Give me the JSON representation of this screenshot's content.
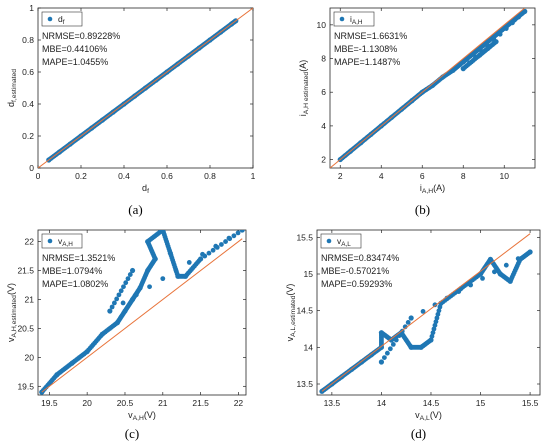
{
  "chart_data": [
    {
      "id": "a",
      "type": "scatter",
      "caption": "(a)",
      "legend": "d_f",
      "legend_main": "d",
      "legend_sub": "f",
      "stats": [
        "NRMSE=0.89228%",
        "MBE=0.44106%",
        "MAPE=1.0455%"
      ],
      "xlabel_main": "d",
      "xlabel_sub": "f",
      "ylabel_main": "d",
      "ylabel_sub": "f,estimated",
      "xlim": [
        0,
        1
      ],
      "ylim": [
        0,
        1
      ],
      "xticks": [
        0,
        0.2,
        0.4,
        0.6,
        0.8,
        1
      ],
      "yticks": [
        0,
        0.2,
        0.4,
        0.6,
        0.8,
        1
      ],
      "xticklabels": [
        "0",
        "0.2",
        "0.4",
        "0.6",
        "0.8",
        "1"
      ],
      "yticklabels": [
        "0",
        "0.2",
        "0.4",
        "0.6",
        "0.8",
        "1"
      ],
      "reference_line": [
        [
          0,
          0
        ],
        [
          1,
          1
        ]
      ],
      "points": [
        [
          0.05,
          0.05
        ],
        [
          0.1,
          0.1
        ],
        [
          0.15,
          0.15
        ],
        [
          0.2,
          0.2
        ],
        [
          0.25,
          0.25
        ],
        [
          0.3,
          0.3
        ],
        [
          0.35,
          0.35
        ],
        [
          0.4,
          0.4
        ],
        [
          0.45,
          0.45
        ],
        [
          0.5,
          0.5
        ],
        [
          0.55,
          0.55
        ],
        [
          0.6,
          0.6
        ],
        [
          0.65,
          0.65
        ],
        [
          0.7,
          0.7
        ],
        [
          0.75,
          0.75
        ],
        [
          0.8,
          0.8
        ],
        [
          0.85,
          0.85
        ],
        [
          0.9,
          0.9
        ],
        [
          0.92,
          0.92
        ]
      ]
    },
    {
      "id": "b",
      "type": "scatter",
      "caption": "(b)",
      "legend": "i_A,H",
      "legend_main": "i",
      "legend_sub": "A,H",
      "stats": [
        "NRMSE=1.6631%",
        "MBE=-1.1308%",
        "MAPE=1.1487%"
      ],
      "xlabel_main": "i",
      "xlabel_sub": "A,H",
      "xlabel_unit": "(A)",
      "ylabel_main": "i",
      "ylabel_sub": "A,H estimated",
      "ylabel_unit": "(A)",
      "xlim": [
        1.5,
        11.5
      ],
      "ylim": [
        1.5,
        11
      ],
      "xticks": [
        2,
        4,
        6,
        8,
        10
      ],
      "yticks": [
        2,
        4,
        6,
        8,
        10
      ],
      "xticklabels": [
        "2",
        "4",
        "6",
        "8",
        "10"
      ],
      "yticklabels": [
        "2",
        "4",
        "6",
        "8",
        "10"
      ],
      "reference_line": [
        [
          1.5,
          1.5
        ],
        [
          11,
          11
        ]
      ],
      "points": [
        [
          2,
          2
        ],
        [
          2.5,
          2.5
        ],
        [
          3,
          3
        ],
        [
          3.5,
          3.5
        ],
        [
          4,
          4
        ],
        [
          4.5,
          4.5
        ],
        [
          5,
          5
        ],
        [
          5.5,
          5.5
        ],
        [
          6,
          6
        ],
        [
          6.5,
          6.4
        ],
        [
          7,
          6.9
        ],
        [
          7.5,
          7.3
        ],
        [
          8,
          7.8
        ],
        [
          8.5,
          8.3
        ],
        [
          9,
          8.8
        ],
        [
          9.5,
          9.3
        ],
        [
          10,
          9.8
        ],
        [
          10.5,
          10.3
        ],
        [
          11,
          10.8
        ],
        [
          8,
          7.4
        ],
        [
          8.8,
          8.2
        ],
        [
          9.2,
          8.6
        ],
        [
          9.6,
          9.0
        ]
      ]
    },
    {
      "id": "c",
      "type": "scatter",
      "caption": "(c)",
      "legend": "v_A,H",
      "legend_main": "v",
      "legend_sub": "A,H",
      "stats": [
        "NRMSE=1.3521%",
        "MBE=1.0794%",
        "MAPE=1.0802%"
      ],
      "xlabel_main": "v",
      "xlabel_sub": "A,H",
      "xlabel_unit": "(V)",
      "ylabel_main": "v",
      "ylabel_sub": "A,H,estimated",
      "ylabel_unit": "(V)",
      "xlim": [
        19.35,
        22.1
      ],
      "ylim": [
        19.35,
        22.2
      ],
      "xticks": [
        19.5,
        20,
        20.5,
        21,
        21.5,
        22
      ],
      "yticks": [
        19.5,
        20,
        20.5,
        21,
        21.5,
        22
      ],
      "xticklabels": [
        "19.5",
        "20",
        "20.5",
        "21",
        "21.5",
        "22"
      ],
      "yticklabels": [
        "19.5",
        "20",
        "20.5",
        "21",
        "21.5",
        "22"
      ],
      "reference_line": [
        [
          19.4,
          19.4
        ],
        [
          22.05,
          22.05
        ]
      ],
      "points": [
        [
          19.4,
          19.4
        ],
        [
          19.6,
          19.7
        ],
        [
          19.8,
          19.9
        ],
        [
          20.0,
          20.1
        ],
        [
          20.2,
          20.4
        ],
        [
          20.4,
          20.6
        ],
        [
          20.5,
          20.8
        ],
        [
          20.6,
          21.0
        ],
        [
          20.7,
          21.2
        ],
        [
          20.8,
          21.5
        ],
        [
          20.9,
          21.7
        ],
        [
          20.8,
          22.0
        ],
        [
          21.0,
          22.2
        ],
        [
          21.1,
          21.8
        ],
        [
          21.2,
          21.4
        ],
        [
          21.3,
          21.4
        ],
        [
          21.5,
          21.7
        ],
        [
          22.05,
          22.2
        ],
        [
          20.3,
          20.8
        ],
        [
          20.6,
          21.5
        ]
      ]
    },
    {
      "id": "d",
      "type": "scatter",
      "caption": "(d)",
      "legend": "v_A,L",
      "legend_main": "v",
      "legend_sub": "A,L",
      "stats": [
        "NRMSE=0.83474%",
        "MBE=-0.57021%",
        "MAPE=0.59293%"
      ],
      "xlabel_main": "v",
      "xlabel_sub": "A,L",
      "xlabel_unit": "(V)",
      "ylabel_main": "v",
      "ylabel_sub": "A,L,estimated",
      "ylabel_unit": "(V)",
      "xlim": [
        13.35,
        15.6
      ],
      "ylim": [
        13.35,
        15.6
      ],
      "xticks": [
        13.5,
        14,
        14.5,
        15,
        15.5
      ],
      "yticks": [
        13.5,
        14,
        14.5,
        15,
        15.5
      ],
      "xticklabels": [
        "13.5",
        "14",
        "14.5",
        "15",
        "15.5"
      ],
      "yticklabels": [
        "13.5",
        "14",
        "14.5",
        "15",
        "15.5"
      ],
      "reference_line": [
        [
          13.4,
          13.4
        ],
        [
          15.5,
          15.55
        ]
      ],
      "points": [
        [
          13.4,
          13.4
        ],
        [
          13.5,
          13.5
        ],
        [
          13.6,
          13.6
        ],
        [
          13.7,
          13.7
        ],
        [
          13.8,
          13.8
        ],
        [
          13.9,
          13.9
        ],
        [
          14.0,
          14.0
        ],
        [
          14.0,
          14.2
        ],
        [
          14.1,
          14.1
        ],
        [
          14.2,
          14.2
        ],
        [
          14.3,
          14.0
        ],
        [
          14.4,
          14.0
        ],
        [
          14.5,
          14.1
        ],
        [
          14.6,
          14.6
        ],
        [
          14.8,
          14.8
        ],
        [
          15.0,
          15.0
        ],
        [
          15.1,
          15.2
        ],
        [
          15.2,
          15.0
        ],
        [
          15.3,
          14.9
        ],
        [
          15.4,
          15.2
        ],
        [
          15.5,
          15.3
        ],
        [
          14.3,
          14.4
        ],
        [
          14.0,
          13.8
        ]
      ]
    }
  ]
}
